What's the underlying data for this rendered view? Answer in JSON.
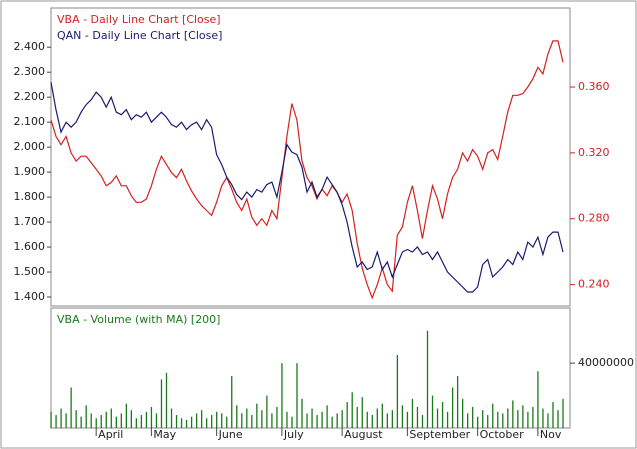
{
  "chart_data": [
    {
      "type": "line",
      "xlim": [
        0,
        103.4
      ],
      "ylim": [
        1.364,
        2.557
      ],
      "yticks": [
        {
          "value": 1.4,
          "label": "1.400"
        },
        {
          "value": 1.5,
          "label": "1.500"
        },
        {
          "value": 1.6,
          "label": "1.600"
        },
        {
          "value": 1.7,
          "label": "1.700"
        },
        {
          "value": 1.8,
          "label": "1.800"
        },
        {
          "value": 1.9,
          "label": "1.900"
        },
        {
          "value": 2.0,
          "label": "2.000"
        },
        {
          "value": 2.1,
          "label": "2.100"
        },
        {
          "value": 2.2,
          "label": "2.200"
        },
        {
          "value": 2.3,
          "label": "2.300"
        },
        {
          "value": 2.4,
          "label": "2.400"
        }
      ],
      "y2lim": [
        0.227,
        0.408
      ],
      "y2ticks": [
        {
          "value": 0.24,
          "label": "0.240"
        },
        {
          "value": 0.28,
          "label": "0.280"
        },
        {
          "value": 0.32,
          "label": "0.320"
        },
        {
          "value": 0.36,
          "label": "0.360"
        }
      ],
      "series": [
        {
          "name": "VBA - Daily Line Chart [Close]",
          "color": "#d42020",
          "axis": "y2",
          "values": [
            0.34,
            0.33,
            0.325,
            0.33,
            0.32,
            0.315,
            0.318,
            0.318,
            0.314,
            0.31,
            0.306,
            0.3,
            0.302,
            0.306,
            0.3,
            0.3,
            0.294,
            0.29,
            0.29,
            0.292,
            0.3,
            0.31,
            0.318,
            0.313,
            0.308,
            0.305,
            0.31,
            0.303,
            0.297,
            0.292,
            0.288,
            0.285,
            0.282,
            0.29,
            0.3,
            0.305,
            0.298,
            0.29,
            0.285,
            0.292,
            0.281,
            0.276,
            0.28,
            0.276,
            0.285,
            0.28,
            0.305,
            0.33,
            0.35,
            0.34,
            0.315,
            0.305,
            0.3,
            0.292,
            0.298,
            0.294,
            0.3,
            0.296,
            0.29,
            0.295,
            0.285,
            0.265,
            0.25,
            0.24,
            0.232,
            0.24,
            0.25,
            0.24,
            0.236,
            0.27,
            0.275,
            0.29,
            0.3,
            0.285,
            0.268,
            0.285,
            0.3,
            0.292,
            0.28,
            0.295,
            0.305,
            0.31,
            0.32,
            0.315,
            0.322,
            0.318,
            0.31,
            0.32,
            0.322,
            0.316,
            0.33,
            0.345,
            0.355,
            0.355,
            0.356,
            0.36,
            0.365,
            0.372,
            0.368,
            0.38,
            0.388,
            0.388,
            0.375
          ]
        },
        {
          "name": "QAN - Daily Line Chart [Close]",
          "color": "#1a1a6e",
          "axis": "y",
          "values": [
            2.26,
            2.15,
            2.06,
            2.1,
            2.08,
            2.1,
            2.14,
            2.17,
            2.19,
            2.22,
            2.2,
            2.16,
            2.2,
            2.14,
            2.13,
            2.15,
            2.11,
            2.13,
            2.12,
            2.14,
            2.1,
            2.12,
            2.14,
            2.12,
            2.09,
            2.08,
            2.1,
            2.07,
            2.09,
            2.1,
            2.07,
            2.11,
            2.08,
            1.97,
            1.93,
            1.88,
            1.85,
            1.81,
            1.79,
            1.82,
            1.8,
            1.83,
            1.82,
            1.85,
            1.86,
            1.8,
            1.9,
            2.01,
            1.98,
            1.97,
            1.92,
            1.82,
            1.86,
            1.8,
            1.83,
            1.88,
            1.85,
            1.82,
            1.77,
            1.7,
            1.6,
            1.52,
            1.54,
            1.51,
            1.52,
            1.58,
            1.51,
            1.54,
            1.48,
            1.53,
            1.58,
            1.59,
            1.58,
            1.6,
            1.57,
            1.58,
            1.55,
            1.58,
            1.54,
            1.5,
            1.48,
            1.46,
            1.44,
            1.42,
            1.42,
            1.44,
            1.53,
            1.55,
            1.48,
            1.5,
            1.52,
            1.55,
            1.53,
            1.58,
            1.55,
            1.62,
            1.6,
            1.64,
            1.57,
            1.64,
            1.66,
            1.66,
            1.58
          ]
        }
      ]
    },
    {
      "type": "bar",
      "xlim": [
        0,
        103.4
      ],
      "xticks": [
        {
          "value": 9,
          "label": "April"
        },
        {
          "value": 20,
          "label": "May"
        },
        {
          "value": 33,
          "label": "June"
        },
        {
          "value": 46,
          "label": "July"
        },
        {
          "value": 58,
          "label": "August"
        },
        {
          "value": 71,
          "label": "September"
        },
        {
          "value": 85,
          "label": "October"
        },
        {
          "value": 97,
          "label": "Nov"
        }
      ],
      "y2lim": [
        0,
        74000000
      ],
      "y2ticks": [
        40000000
      ],
      "series": [
        {
          "name": "VBA - Volume (with MA) [200]",
          "color": "#1a7a1a",
          "axis": "y2",
          "values": [
            10000000,
            8000000,
            12000000,
            9000000,
            25000000,
            11000000,
            7000000,
            14000000,
            9000000,
            6000000,
            8000000,
            10000000,
            12000000,
            7000000,
            9000000,
            15000000,
            11000000,
            6000000,
            8000000,
            10000000,
            13000000,
            9000000,
            30000000,
            34000000,
            12000000,
            8000000,
            6000000,
            5000000,
            7000000,
            9000000,
            11000000,
            6000000,
            8000000,
            10000000,
            9000000,
            7000000,
            32000000,
            14000000,
            9000000,
            12000000,
            8000000,
            15000000,
            11000000,
            20000000,
            9000000,
            13000000,
            40000000,
            10000000,
            7000000,
            40000000,
            18000000,
            9000000,
            12000000,
            8000000,
            10000000,
            14000000,
            7000000,
            9000000,
            11000000,
            16000000,
            22000000,
            13000000,
            19000000,
            10000000,
            8000000,
            12000000,
            15000000,
            9000000,
            11000000,
            45000000,
            14000000,
            10000000,
            18000000,
            13000000,
            8000000,
            60000000,
            20000000,
            12000000,
            16000000,
            10000000,
            25000000,
            32000000,
            18000000,
            9000000,
            13000000,
            7000000,
            11000000,
            8000000,
            15000000,
            10000000,
            9000000,
            12000000,
            17000000,
            11000000,
            14000000,
            10000000,
            13000000,
            35000000,
            12000000,
            9000000,
            16000000,
            11000000,
            18000000
          ]
        }
      ]
    }
  ]
}
